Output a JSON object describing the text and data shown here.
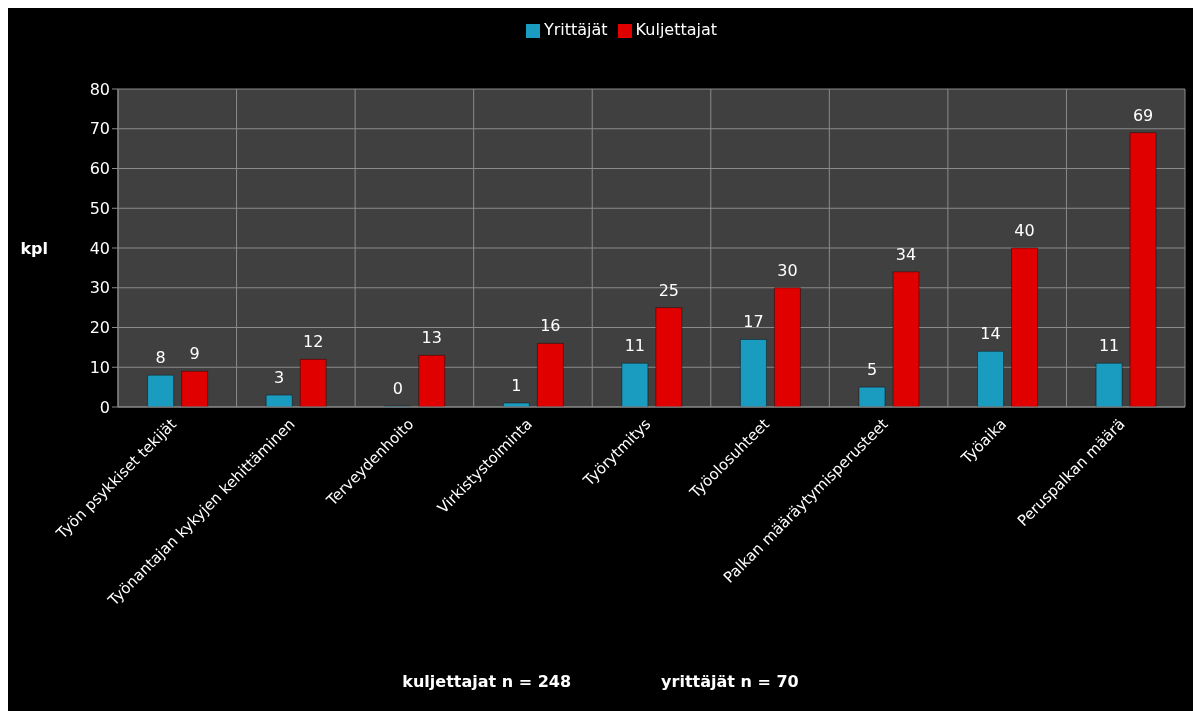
{
  "chart_data": {
    "type": "bar",
    "categories": [
      "Työn psykkiset tekijät",
      "Työnantajan kykyjen kehittäminen",
      "Terveydenhoito",
      "Virkistystoiminta",
      "Työrytmitys",
      "Työolosuhteet",
      "Palkan määräytymisperusteet",
      "Työaika",
      "Peruspalkan määrä"
    ],
    "series": [
      {
        "name": "Yrittäjät",
        "color": "#1a9cc0",
        "values": [
          8,
          3,
          0,
          1,
          11,
          17,
          5,
          14,
          11
        ]
      },
      {
        "name": "Kuljettajat",
        "color": "#e00000",
        "values": [
          9,
          12,
          13,
          16,
          25,
          30,
          34,
          40,
          69
        ]
      }
    ],
    "ylabel": "kpl",
    "ylim": [
      0,
      80
    ],
    "yticks": [
      0,
      10,
      20,
      30,
      40,
      50,
      60,
      70,
      80
    ],
    "grid": true,
    "legend": "top",
    "data_labels": true,
    "annotations": [
      "kuljettajat n = 248",
      "yrittäjät n = 70"
    ]
  }
}
